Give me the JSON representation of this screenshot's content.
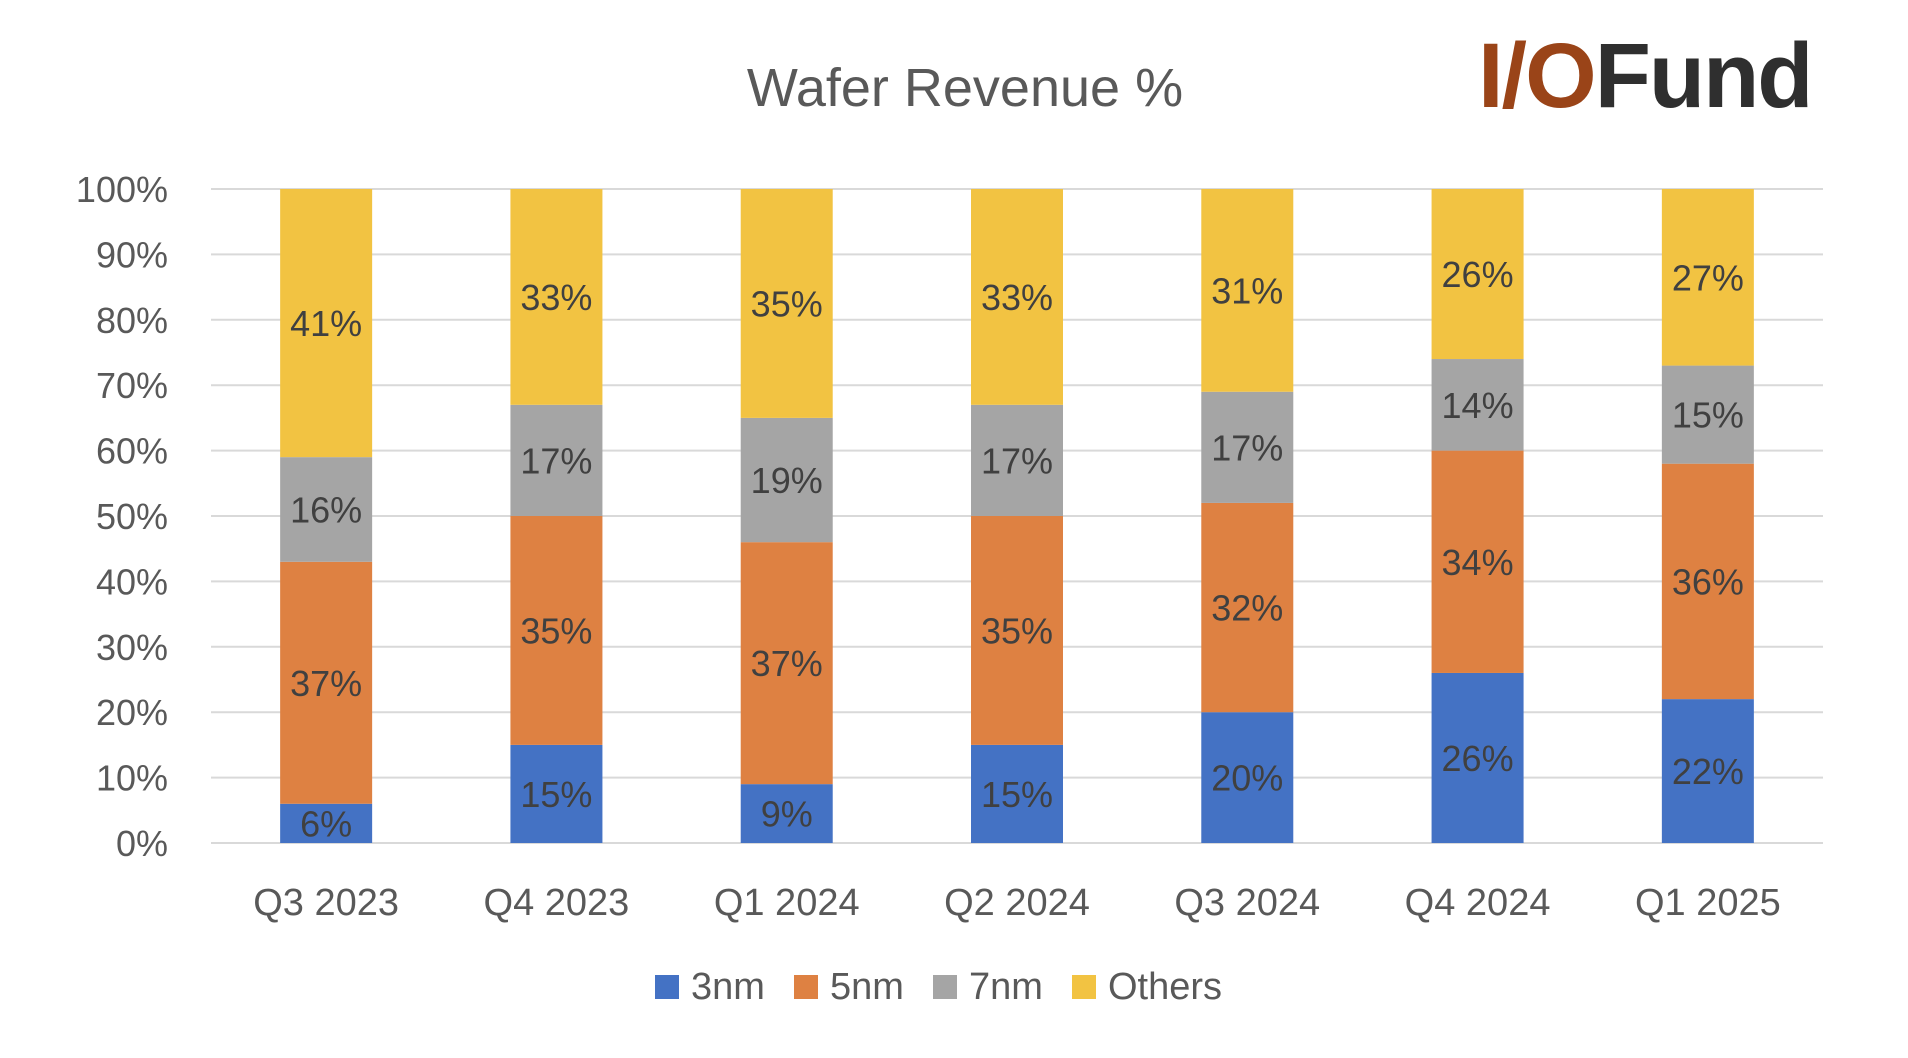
{
  "logo": {
    "text": "I/OFund",
    "part1": "I/O",
    "part2": "Fund"
  },
  "chart_data": {
    "type": "bar",
    "stacked": true,
    "title": "Wafer Revenue %",
    "xlabel": "",
    "ylabel": "",
    "categories": [
      "Q3 2023",
      "Q4 2023",
      "Q1 2024",
      "Q2 2024",
      "Q3 2024",
      "Q4 2024",
      "Q1 2025"
    ],
    "series": [
      {
        "name": "3nm",
        "color": "#4472c4",
        "values": [
          6,
          15,
          9,
          15,
          20,
          26,
          22
        ]
      },
      {
        "name": "5nm",
        "color": "#de8142",
        "values": [
          37,
          35,
          37,
          35,
          32,
          34,
          36
        ]
      },
      {
        "name": "7nm",
        "color": "#a5a5a5",
        "values": [
          16,
          17,
          19,
          17,
          17,
          14,
          15
        ]
      },
      {
        "name": "Others",
        "color": "#f2c342",
        "values": [
          41,
          33,
          35,
          33,
          31,
          26,
          27
        ]
      }
    ],
    "ylim": [
      0,
      100
    ],
    "yticks": [
      "0%",
      "10%",
      "20%",
      "30%",
      "40%",
      "50%",
      "60%",
      "70%",
      "80%",
      "90%",
      "100%"
    ],
    "grid": true,
    "legend": "bottom",
    "data_labels": true
  }
}
